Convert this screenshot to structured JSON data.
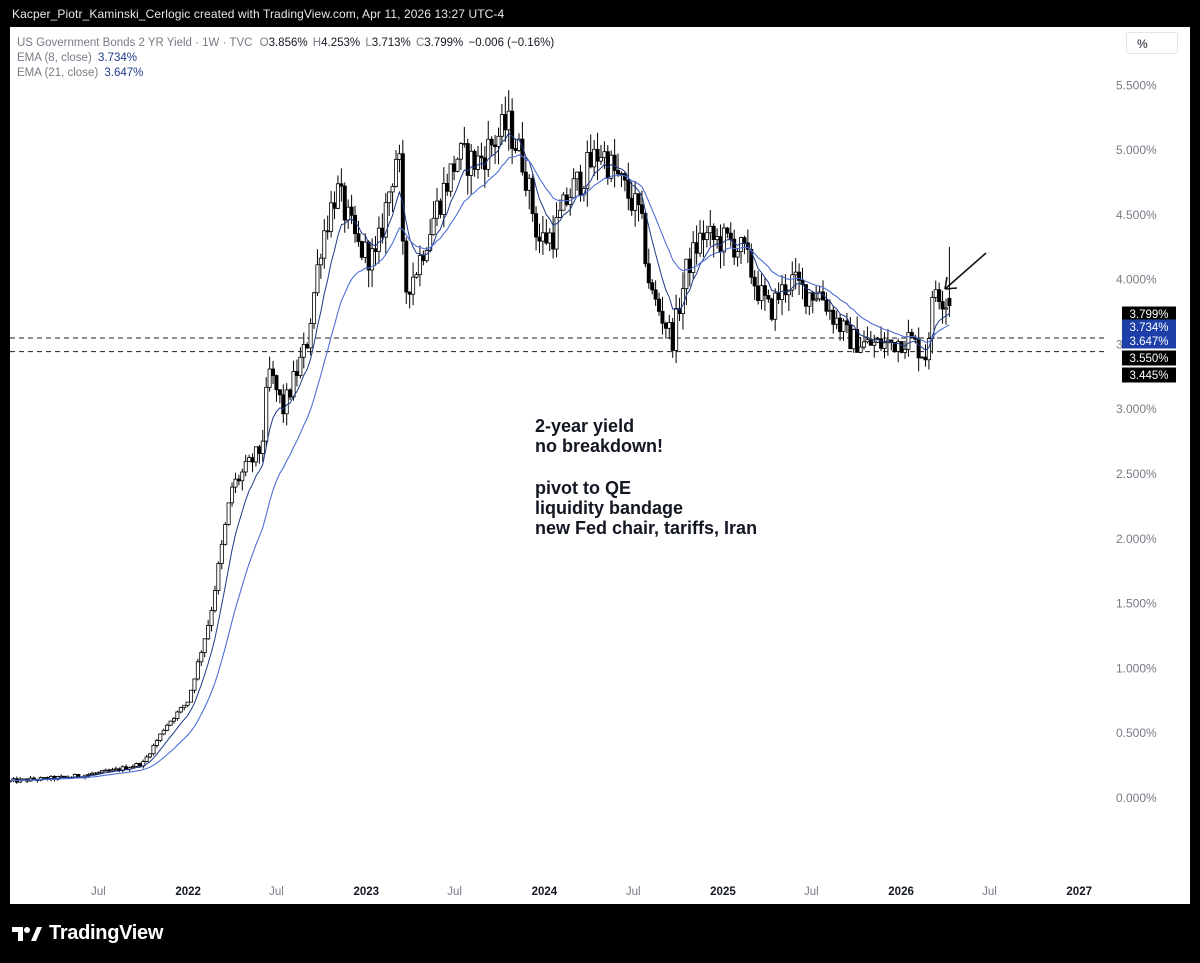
{
  "caption": "Kacper_Piotr_Kaminski_Cerlogic created with TradingView.com, Apr 11, 2026 13:27 UTC-4",
  "footer_brand": "TradingView",
  "legend": {
    "symbol": "US Government Bonds 2 YR Yield · 1W · TVC",
    "o_label": "O",
    "o_value": "3.856%",
    "h_label": "H",
    "h_value": "4.253%",
    "l_label": "L",
    "l_value": "3.713%",
    "c_label": "C",
    "c_value": "3.799%",
    "change": "−0.006 (−0.16%)",
    "ema8_label": "EMA (8, close)",
    "ema8_value": "3.734%",
    "ema21_label": "EMA (21, close)",
    "ema21_value": "3.647%"
  },
  "unit_button": "%",
  "annotation": {
    "line1": "2-year yield",
    "line2": "no breakdown!",
    "line3": "pivot to QE",
    "line4": "liquidity bandage",
    "line5": "new Fed chair, tariffs, Iran"
  },
  "chart_data": {
    "type": "candlestick",
    "interval": "1W",
    "y_unit": "%",
    "y_ticks": [
      0.0,
      0.5,
      1.0,
      1.5,
      2.0,
      2.5,
      3.0,
      3.5,
      4.0,
      4.5,
      5.0,
      5.5
    ],
    "y_tick_labels": [
      "0.000%",
      "0.500%",
      "1.000%",
      "1.500%",
      "2.000%",
      "2.500%",
      "3.000%",
      "3.500%",
      "4.000%",
      "4.500%",
      "5.000%",
      "5.500%"
    ],
    "ylim": [
      -0.61,
      5.95
    ],
    "x_range": [
      "2021-01-01",
      "2027-03-01"
    ],
    "x_ticks": [
      {
        "date": "2021-07-01",
        "label": "Jul",
        "bold": false
      },
      {
        "date": "2022-01-01",
        "label": "2022",
        "bold": true
      },
      {
        "date": "2022-07-01",
        "label": "Jul",
        "bold": false
      },
      {
        "date": "2023-01-01",
        "label": "2023",
        "bold": true
      },
      {
        "date": "2023-07-01",
        "label": "Jul",
        "bold": false
      },
      {
        "date": "2024-01-01",
        "label": "2024",
        "bold": true
      },
      {
        "date": "2024-07-01",
        "label": "Jul",
        "bold": false
      },
      {
        "date": "2025-01-01",
        "label": "2025",
        "bold": true
      },
      {
        "date": "2025-07-01",
        "label": "Jul",
        "bold": false
      },
      {
        "date": "2026-01-01",
        "label": "2026",
        "bold": true
      },
      {
        "date": "2026-07-01",
        "label": "Jul",
        "bold": false
      },
      {
        "date": "2027-01-01",
        "label": "2027",
        "bold": true
      }
    ],
    "horizontal_lines": [
      3.55,
      3.445
    ],
    "price_labels": [
      {
        "value": 3.799,
        "label": "3.799%",
        "color": "#000000"
      },
      {
        "value": 3.734,
        "label": "3.734%",
        "color": "#1e3fa8"
      },
      {
        "value": 3.647,
        "label": "3.647%",
        "color": "#1e3fa8"
      },
      {
        "value": 3.55,
        "label": "3.550%",
        "color": "#000000"
      },
      {
        "value": 3.445,
        "label": "3.445%",
        "color": "#000000"
      }
    ],
    "price_anchors": [
      [
        "2021-01-01",
        0.13
      ],
      [
        "2021-05-01",
        0.16
      ],
      [
        "2021-08-01",
        0.21
      ],
      [
        "2021-10-01",
        0.27
      ],
      [
        "2021-11-15",
        0.55
      ],
      [
        "2022-01-01",
        0.75
      ],
      [
        "2022-02-15",
        1.4
      ],
      [
        "2022-04-01",
        2.4
      ],
      [
        "2022-06-01",
        2.7
      ],
      [
        "2022-06-15",
        3.3
      ],
      [
        "2022-07-15",
        3.0
      ],
      [
        "2022-09-01",
        3.5
      ],
      [
        "2022-10-01",
        4.3
      ],
      [
        "2022-11-01",
        4.7
      ],
      [
        "2022-12-15",
        4.25
      ],
      [
        "2023-01-20",
        4.15
      ],
      [
        "2023-03-08",
        5.05
      ],
      [
        "2023-03-20",
        3.9
      ],
      [
        "2023-04-15",
        4.1
      ],
      [
        "2023-05-30",
        4.6
      ],
      [
        "2023-07-07",
        4.95
      ],
      [
        "2023-08-15",
        4.9
      ],
      [
        "2023-10-18",
        5.2
      ],
      [
        "2023-11-20",
        4.9
      ],
      [
        "2023-12-20",
        4.3
      ],
      [
        "2024-01-20",
        4.35
      ],
      [
        "2024-02-20",
        4.65
      ],
      [
        "2024-04-25",
        5.0
      ],
      [
        "2024-05-20",
        4.85
      ],
      [
        "2024-07-15",
        4.5
      ],
      [
        "2024-08-06",
        3.9
      ],
      [
        "2024-09-20",
        3.55
      ],
      [
        "2024-10-20",
        4.1
      ],
      [
        "2024-11-20",
        4.35
      ],
      [
        "2024-12-15",
        4.3
      ],
      [
        "2025-01-15",
        4.3
      ],
      [
        "2025-02-15",
        4.2
      ],
      [
        "2025-03-10",
        3.95
      ],
      [
        "2025-04-07",
        3.75
      ],
      [
        "2025-04-20",
        3.85
      ],
      [
        "2025-05-20",
        4.0
      ],
      [
        "2025-06-20",
        3.9
      ],
      [
        "2025-07-20",
        3.9
      ],
      [
        "2025-08-10",
        3.75
      ],
      [
        "2025-09-15",
        3.55
      ],
      [
        "2025-10-20",
        3.5
      ],
      [
        "2025-12-01",
        3.5
      ],
      [
        "2026-01-15",
        3.55
      ],
      [
        "2026-02-20",
        3.42
      ],
      [
        "2026-03-12",
        3.95
      ],
      [
        "2026-03-25",
        3.88
      ],
      [
        "2026-04-10",
        3.799
      ]
    ],
    "ema_series": [
      {
        "name": "EMA (8, close)",
        "value": 3.734,
        "color": "#1e3a8a"
      },
      {
        "name": "EMA (21, close)",
        "value": 3.647,
        "color": "#4f6fd6"
      }
    ]
  }
}
